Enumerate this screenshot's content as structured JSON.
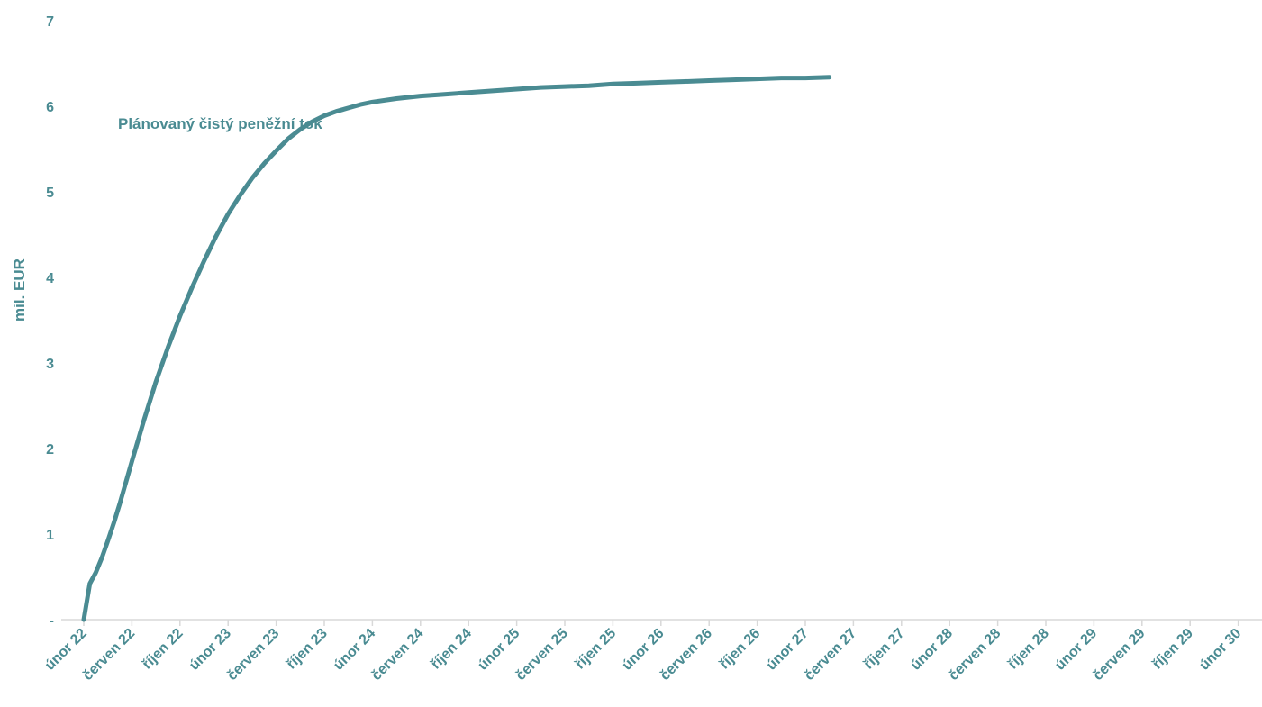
{
  "chart_data": {
    "type": "line",
    "ylabel": "mil. EUR",
    "annotation": "Plánovaný čistý peněžní tok",
    "ylim": [
      0,
      7
    ],
    "yticks": [
      {
        "value": 0,
        "label": "-"
      },
      {
        "value": 1,
        "label": "1"
      },
      {
        "value": 2,
        "label": "2"
      },
      {
        "value": 3,
        "label": "3"
      },
      {
        "value": 4,
        "label": "4"
      },
      {
        "value": 5,
        "label": "5"
      },
      {
        "value": 6,
        "label": "6"
      },
      {
        "value": 7,
        "label": "7"
      }
    ],
    "xtick_labels": [
      "únor 22",
      "červen 22",
      "říjen 22",
      "únor 23",
      "červen 23",
      "říjen 23",
      "únor 24",
      "červen 24",
      "říjen 24",
      "únor 25",
      "červen 25",
      "říjen 25",
      "únor 26",
      "červen 26",
      "říjen 26",
      "únor 27",
      "červen 27",
      "říjen 27",
      "únor 28",
      "červen 28",
      "říjen 28",
      "únor 29",
      "červen 29",
      "říjen 29",
      "únor 30"
    ],
    "grid": false,
    "colors": {
      "line": "#4a8b92",
      "text": "#4a8b92",
      "axis": "#d9d9d9"
    },
    "series": [
      {
        "x_unit": "months since únor 22",
        "values": [
          [
            0,
            0.0
          ],
          [
            0.5,
            0.42
          ],
          [
            1,
            0.55
          ],
          [
            1.5,
            0.72
          ],
          [
            2,
            0.92
          ],
          [
            2.5,
            1.13
          ],
          [
            3,
            1.36
          ],
          [
            4,
            1.85
          ],
          [
            5,
            2.33
          ],
          [
            6,
            2.78
          ],
          [
            7,
            3.18
          ],
          [
            8,
            3.55
          ],
          [
            9,
            3.88
          ],
          [
            10,
            4.19
          ],
          [
            11,
            4.48
          ],
          [
            12,
            4.74
          ],
          [
            13,
            4.96
          ],
          [
            14,
            5.16
          ],
          [
            15,
            5.33
          ],
          [
            16,
            5.48
          ],
          [
            17,
            5.62
          ],
          [
            18,
            5.73
          ],
          [
            19,
            5.82
          ],
          [
            20,
            5.89
          ],
          [
            21,
            5.94
          ],
          [
            22,
            5.98
          ],
          [
            23,
            6.02
          ],
          [
            24,
            6.05
          ],
          [
            26,
            6.09
          ],
          [
            28,
            6.12
          ],
          [
            30,
            6.14
          ],
          [
            32,
            6.16
          ],
          [
            34,
            6.18
          ],
          [
            36,
            6.2
          ],
          [
            38,
            6.22
          ],
          [
            40,
            6.23
          ],
          [
            42,
            6.24
          ],
          [
            44,
            6.26
          ],
          [
            46,
            6.27
          ],
          [
            48,
            6.28
          ],
          [
            50,
            6.29
          ],
          [
            52,
            6.3
          ],
          [
            54,
            6.31
          ],
          [
            56,
            6.32
          ],
          [
            58,
            6.33
          ],
          [
            60,
            6.33
          ],
          [
            62,
            6.34
          ]
        ]
      }
    ]
  }
}
